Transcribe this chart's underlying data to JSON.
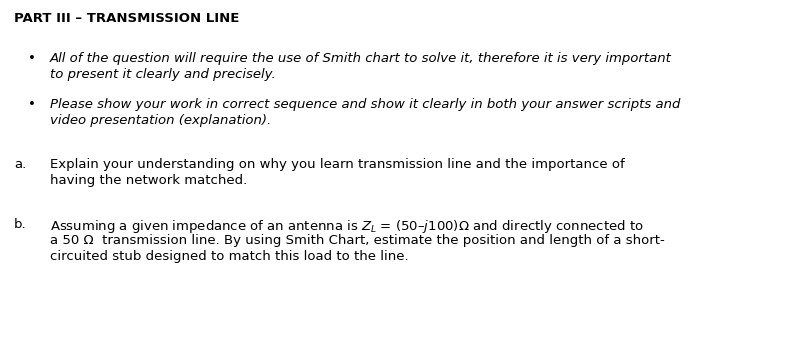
{
  "title": "PART III – TRANSMISSION LINE",
  "bullet1_line1": "All of the question will require the use of Smith chart to solve it, therefore it is very important",
  "bullet1_line2": "to present it clearly and precisely.",
  "bullet2_line1": "Please show your work in correct sequence and show it clearly in both your answer scripts and",
  "bullet2_line2": "video presentation (explanation).",
  "part_a_label": "a.",
  "part_a_line1": "Explain your understanding on why you learn transmission line and the importance of",
  "part_a_line2": "having the network matched.",
  "part_b_label": "b.",
  "part_b_line1": "Assuming a given impedance of an antenna is $Z_L$ = (50–$j$100)Ω and directly connected to",
  "part_b_line2": "a 50 Ω  transmission line. By using Smith Chart, estimate the position and length of a short-",
  "part_b_line3": "circuited stub designed to match this load to the line.",
  "bg_color": "#ffffff",
  "text_color": "#000000",
  "title_fontsize": 9.5,
  "body_fontsize": 9.5
}
